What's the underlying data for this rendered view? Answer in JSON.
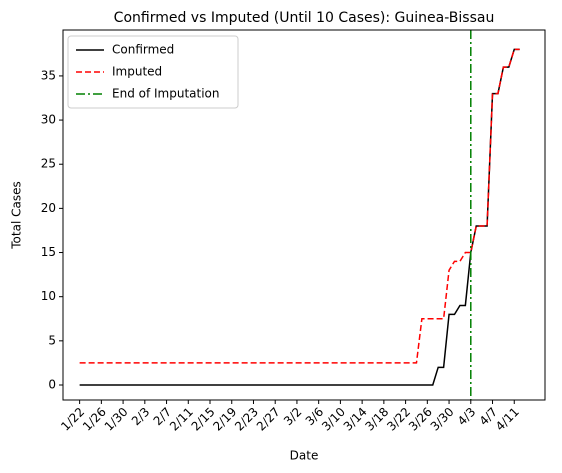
{
  "chart_data": {
    "type": "line",
    "title": "Confirmed vs Imputed (Until 10 Cases): Guinea-Bissau",
    "xlabel": "Date",
    "ylabel": "Total Cases",
    "categories": [
      "1/22",
      null,
      null,
      null,
      "1/26",
      null,
      null,
      null,
      "1/30",
      null,
      null,
      null,
      "2/3",
      null,
      null,
      null,
      "2/7",
      null,
      null,
      null,
      "2/11",
      null,
      null,
      null,
      "2/15",
      null,
      null,
      null,
      "2/19",
      null,
      null,
      null,
      "2/23",
      null,
      null,
      null,
      "2/27",
      null,
      null,
      null,
      "3/2",
      null,
      null,
      null,
      "3/6",
      null,
      null,
      null,
      "3/10",
      null,
      null,
      null,
      "3/14",
      null,
      null,
      null,
      "3/18",
      null,
      null,
      null,
      "3/22",
      null,
      null,
      null,
      "3/26",
      null,
      null,
      null,
      "3/30",
      null,
      null,
      null,
      "4/3",
      null,
      null,
      null,
      "4/7",
      null,
      null,
      null,
      "4/11",
      null
    ],
    "series": [
      {
        "name": "Confirmed",
        "color": "#000000",
        "style": "solid",
        "values": [
          0,
          0,
          0,
          0,
          0,
          0,
          0,
          0,
          0,
          0,
          0,
          0,
          0,
          0,
          0,
          0,
          0,
          0,
          0,
          0,
          0,
          0,
          0,
          0,
          0,
          0,
          0,
          0,
          0,
          0,
          0,
          0,
          0,
          0,
          0,
          0,
          0,
          0,
          0,
          0,
          0,
          0,
          0,
          0,
          0,
          0,
          0,
          0,
          0,
          0,
          0,
          0,
          0,
          0,
          0,
          0,
          0,
          0,
          0,
          0,
          0,
          0,
          0,
          0,
          0,
          0,
          2,
          2,
          8,
          8,
          9,
          9,
          15,
          18,
          18,
          18,
          33,
          33,
          36,
          36,
          38,
          38
        ]
      },
      {
        "name": "Imputed",
        "color": "#ff0000",
        "style": "dashed",
        "values": [
          2.5,
          2.5,
          2.5,
          2.5,
          2.5,
          2.5,
          2.5,
          2.5,
          2.5,
          2.5,
          2.5,
          2.5,
          2.5,
          2.5,
          2.5,
          2.5,
          2.5,
          2.5,
          2.5,
          2.5,
          2.5,
          2.5,
          2.5,
          2.5,
          2.5,
          2.5,
          2.5,
          2.5,
          2.5,
          2.5,
          2.5,
          2.5,
          2.5,
          2.5,
          2.5,
          2.5,
          2.5,
          2.5,
          2.5,
          2.5,
          2.5,
          2.5,
          2.5,
          2.5,
          2.5,
          2.5,
          2.5,
          2.5,
          2.5,
          2.5,
          2.5,
          2.5,
          2.5,
          2.5,
          2.5,
          2.5,
          2.5,
          2.5,
          2.5,
          2.5,
          2.5,
          2.5,
          2.5,
          7.5,
          7.5,
          7.5,
          7.5,
          7.5,
          13,
          14,
          14,
          15,
          15,
          18,
          18,
          18,
          33,
          33,
          36,
          36,
          38,
          38
        ]
      }
    ],
    "vline": {
      "name": "End of Imputation",
      "at": "4/3",
      "color": "#008000",
      "style": "dashdot"
    },
    "ylim": [
      -1.7,
      40.2
    ],
    "yticks": [
      0,
      5,
      10,
      15,
      20,
      25,
      30,
      35
    ],
    "legend": "upper left"
  }
}
